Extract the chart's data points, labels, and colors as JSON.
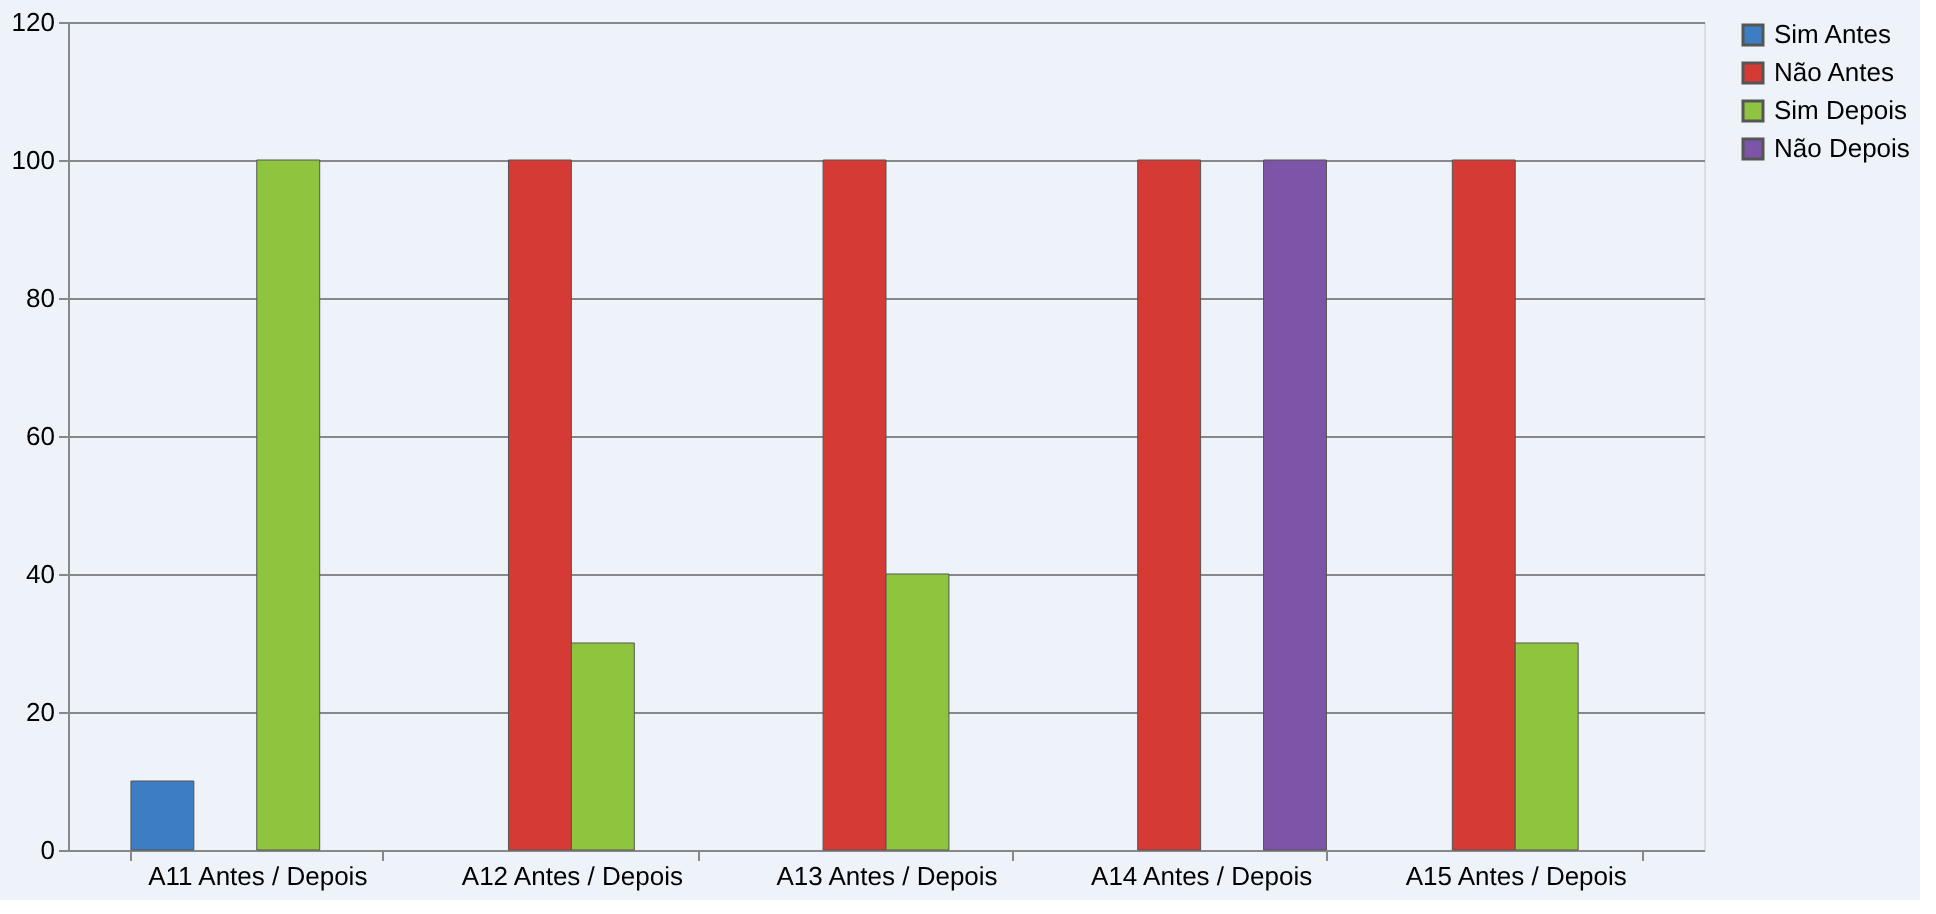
{
  "chart_data": {
    "type": "bar",
    "categories": [
      "A11 Antes / Depois",
      "A12 Antes / Depois",
      "A13 Antes / Depois",
      "A14 Antes / Depois",
      "A15 Antes / Depois"
    ],
    "series": [
      {
        "name": "Sim  Antes",
        "color": "#3c7dc4",
        "values": [
          10,
          null,
          null,
          null,
          null
        ]
      },
      {
        "name": "Não Antes",
        "color": "#d63a35",
        "values": [
          null,
          100,
          100,
          100,
          100
        ]
      },
      {
        "name": "Sim Depois",
        "color": "#8fc43f",
        "values": [
          100,
          30,
          40,
          null,
          30
        ]
      },
      {
        "name": "Não Depois",
        "color": "#7d55a8",
        "values": [
          null,
          null,
          null,
          100,
          null
        ]
      }
    ],
    "ylim": [
      0,
      120
    ],
    "yticks": [
      0,
      20,
      40,
      60,
      80,
      100,
      120
    ],
    "grid": "y",
    "legend": "right"
  }
}
